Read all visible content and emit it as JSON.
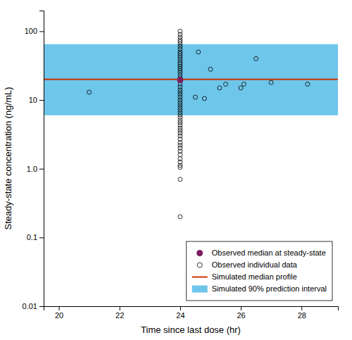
{
  "chart_data": {
    "type": "scatter",
    "xlabel": "Time since last dose (hr)",
    "ylabel": "Steady-state concentration (ng/mL)",
    "log": "y",
    "xlim": [
      19.5,
      29.2
    ],
    "ylim": [
      0.01,
      200
    ],
    "xticks": [
      20,
      22,
      24,
      26,
      28
    ],
    "yticks": [
      0.01,
      0.1,
      {
        "value": 1.0,
        "label": "1.0"
      },
      10,
      100
    ],
    "legend": "lower right",
    "series": [
      {
        "name": "Observed median at steady-state",
        "type": "scatter",
        "marker": "circle",
        "color": "#7B1D5E",
        "x": [
          24.0
        ],
        "values": [
          19.5
        ]
      },
      {
        "name": "Observed individual data",
        "type": "scatter",
        "marker": "hollow",
        "color": "#000000",
        "x": [
          24.0,
          24.0,
          24.0,
          24.0,
          24.0,
          24.0,
          24.0,
          24.0,
          24.0,
          24.0,
          24.0,
          24.0,
          24.0,
          24.0,
          24.0,
          24.0,
          24.0,
          24.0,
          24.0,
          24.0,
          24.0,
          24.0,
          24.0,
          24.0,
          24.0,
          24.0,
          24.0,
          24.0,
          24.0,
          24.0,
          24.0,
          24.0,
          24.0,
          24.0,
          24.0,
          24.0,
          24.0,
          24.0,
          24.0,
          24.0,
          24.0,
          24.0,
          24.0,
          24.0,
          24.0,
          24.0,
          24.0,
          24.0,
          24.0,
          24.0,
          24.0,
          24.0,
          24.0,
          24.0,
          24.0,
          21.0,
          24.5,
          24.6,
          24.8,
          25.0,
          25.3,
          25.5,
          26.0,
          26.1,
          26.5,
          27.0,
          28.2
        ],
        "values": [
          100,
          90,
          82,
          75,
          70,
          65,
          60,
          55,
          50,
          47,
          44,
          41,
          38,
          35,
          33,
          31,
          29,
          27,
          25,
          23,
          21,
          19,
          17,
          15.5,
          14,
          13,
          12,
          11,
          10,
          9.2,
          8.5,
          7.8,
          7.2,
          6.6,
          6.1,
          5.6,
          5.1,
          4.7,
          4.3,
          3.9,
          3.6,
          3.3,
          3.0,
          2.7,
          2.4,
          2.2,
          2.0,
          1.8,
          1.6,
          1.4,
          1.25,
          1.12,
          1.05,
          0.7,
          0.2,
          13.0,
          11.0,
          50.0,
          10.5,
          28.0,
          15.0,
          17.0,
          15.0,
          17.0,
          40.0,
          18.0,
          17.0
        ]
      },
      {
        "name": "Simulated median profile",
        "type": "line",
        "color": "#CC3300",
        "x": [
          19.5,
          29.2
        ],
        "values": [
          20.0,
          20.0
        ]
      },
      {
        "name": "Simulated 90% prediction interval",
        "type": "area",
        "color": "#6EC6EA",
        "x": [
          19.5,
          29.2
        ],
        "lower": [
          6.0,
          6.0
        ],
        "upper": [
          65.0,
          65.0
        ]
      }
    ]
  }
}
